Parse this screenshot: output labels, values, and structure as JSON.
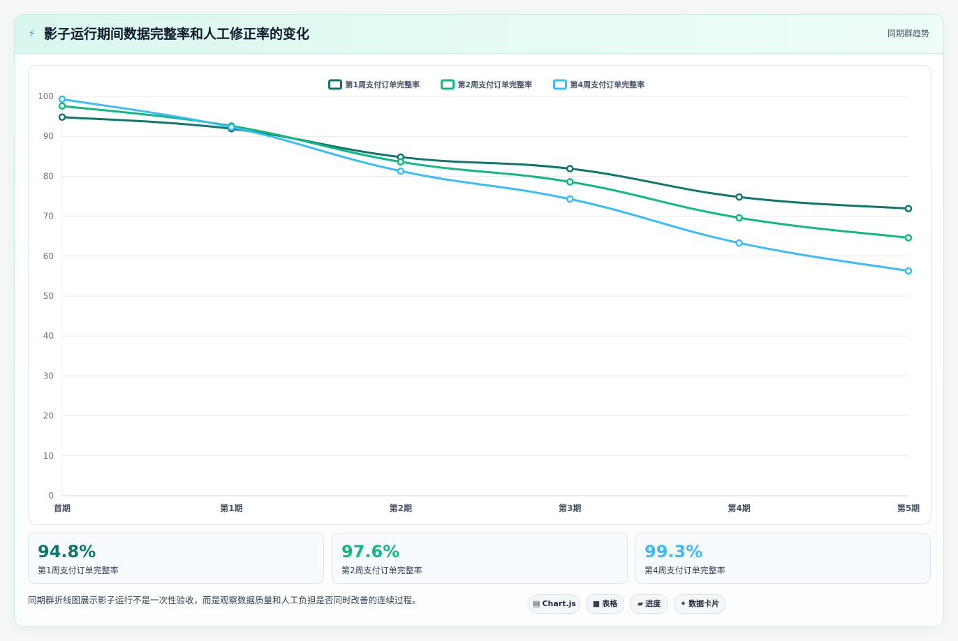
{
  "header": {
    "icon": "lightning-icon",
    "title": "影子运行期间数据完整率和人工修正率的变化",
    "tag": "同期群趋势"
  },
  "chart_data": {
    "type": "line",
    "categories": [
      "首期",
      "第1期",
      "第2期",
      "第3期",
      "第4期",
      "第5期"
    ],
    "ylim": [
      0,
      100
    ],
    "yticks": [
      0,
      10,
      20,
      30,
      40,
      50,
      60,
      70,
      80,
      90,
      100
    ],
    "grid": true,
    "legend_position": "top",
    "series": [
      {
        "name": "第1周支付订单完整率",
        "color": "#0f766e",
        "values": [
          94.8,
          91.9,
          84.8,
          81.9,
          74.8,
          71.9
        ]
      },
      {
        "name": "第2周支付订单完整率",
        "color": "#10b981",
        "values": [
          97.6,
          92.6,
          83.6,
          78.6,
          69.6,
          64.6
        ]
      },
      {
        "name": "第4周支付订单完整率",
        "color": "#38bdf8",
        "values": [
          99.3,
          92.3,
          81.3,
          74.3,
          63.3,
          56.3
        ]
      }
    ]
  },
  "stats": [
    {
      "value": "94.8%",
      "label": "第1周支付订单完整率",
      "color": "#0f766e"
    },
    {
      "value": "97.6%",
      "label": "第2周支付订单完整率",
      "color": "#10b981"
    },
    {
      "value": "99.3%",
      "label": "第4周支付订单完整率",
      "color": "#38bdf8"
    }
  ],
  "footer": {
    "text": "同期群折线图展示影子运行不是一次性验收，而是观察数据质量和人工负担是否同时改善的连续过程。",
    "pills": [
      {
        "icon": "chart-icon",
        "glyph": "▤",
        "label": "Chart.js"
      },
      {
        "icon": "table-icon",
        "glyph": "■",
        "label": "表格"
      },
      {
        "icon": "progress-icon",
        "glyph": "▰",
        "label": "进度"
      },
      {
        "icon": "sparkle-icon",
        "glyph": "✦",
        "label": "数据卡片"
      }
    ]
  }
}
